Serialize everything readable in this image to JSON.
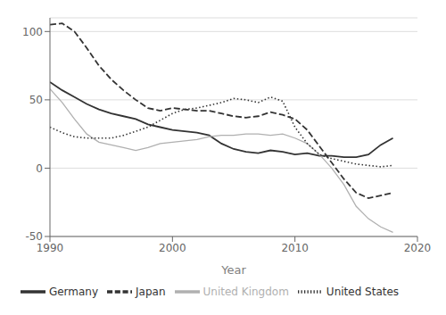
{
  "chart_data": {
    "type": "line",
    "x": [
      1990,
      1991,
      1992,
      1993,
      1994,
      1995,
      1996,
      1997,
      1998,
      1999,
      2000,
      2001,
      2002,
      2003,
      2004,
      2005,
      2006,
      2007,
      2008,
      2009,
      2010,
      2011,
      2012,
      2013,
      2014,
      2015,
      2016,
      2017,
      2018
    ],
    "series": [
      {
        "name": "Germany",
        "color": "#333333",
        "line_style": "solid",
        "values": [
          63,
          57,
          52,
          47,
          43,
          40,
          38,
          36,
          32,
          30,
          28,
          27,
          26,
          24,
          18,
          14,
          12,
          11,
          13,
          12,
          10,
          11,
          9,
          9,
          8,
          8,
          10,
          17,
          22
        ]
      },
      {
        "name": "Japan",
        "color": "#333333",
        "line_style": "dashed",
        "values": [
          105,
          106,
          100,
          88,
          75,
          65,
          57,
          50,
          44,
          42,
          44,
          43,
          42,
          42,
          40,
          38,
          37,
          38,
          41,
          39,
          36,
          28,
          16,
          4,
          -8,
          -18,
          -22,
          -20,
          -18
        ]
      },
      {
        "name": "United Kingdom",
        "color": "#b0b0b0",
        "line_style": "solid",
        "values": [
          58,
          48,
          36,
          25,
          19,
          17,
          15,
          13,
          15,
          18,
          19,
          20,
          21,
          23,
          24,
          24,
          25,
          25,
          24,
          25,
          22,
          18,
          10,
          0,
          -12,
          -28,
          -37,
          -43,
          -47
        ]
      },
      {
        "name": "United States",
        "color": "#333333",
        "line_style": "dotted",
        "values": [
          30,
          26,
          23,
          22,
          22,
          22,
          24,
          27,
          30,
          35,
          40,
          43,
          44,
          46,
          48,
          51,
          50,
          48,
          52,
          49,
          30,
          18,
          10,
          7,
          5,
          3,
          2,
          1,
          2
        ]
      }
    ],
    "xlim": [
      1990,
      2020
    ],
    "xticks": [
      1990,
      2000,
      2010,
      2020
    ],
    "ylim": [
      -50,
      110
    ],
    "yticks": [
      -50,
      0,
      50,
      100
    ],
    "xlabel": "Year",
    "grid": true,
    "legend": "bottom"
  }
}
